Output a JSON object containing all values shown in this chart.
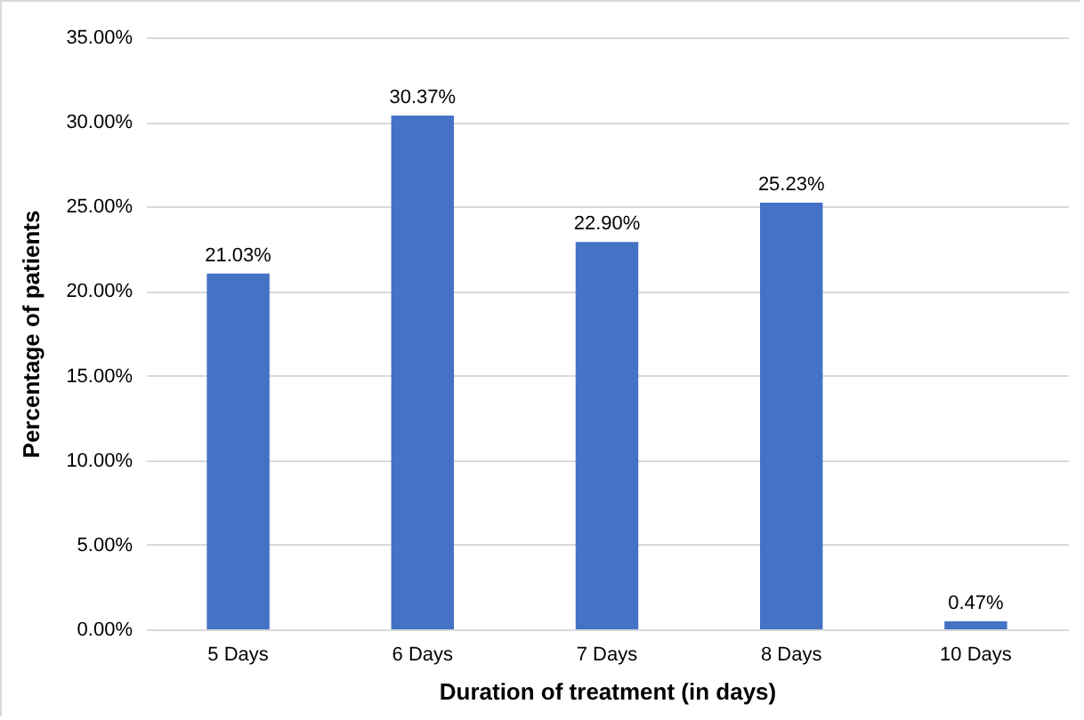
{
  "chart_data": {
    "type": "bar",
    "xlabel": "Duration of treatment (in days)",
    "ylabel": "Percentage of patients",
    "categories": [
      "5 Days",
      "6 Days",
      "7 Days",
      "8 Days",
      "10 Days"
    ],
    "values": [
      21.03,
      30.37,
      22.9,
      25.23,
      0.47
    ],
    "value_labels": [
      "21.03%",
      "30.37%",
      "22.90%",
      "25.23%",
      "0.47%"
    ],
    "color": "#4472c4",
    "ylim": [
      0,
      35
    ],
    "yticks": [
      {
        "value": 0,
        "label": "0.00%"
      },
      {
        "value": 5,
        "label": "5.00%"
      },
      {
        "value": 10,
        "label": "10.00%"
      },
      {
        "value": 15,
        "label": "15.00%"
      },
      {
        "value": 20,
        "label": "20.00%"
      },
      {
        "value": 25,
        "label": "25.00%"
      },
      {
        "value": 30,
        "label": "30.00%"
      },
      {
        "value": 35,
        "label": "35.00%"
      }
    ],
    "grid": "y"
  }
}
